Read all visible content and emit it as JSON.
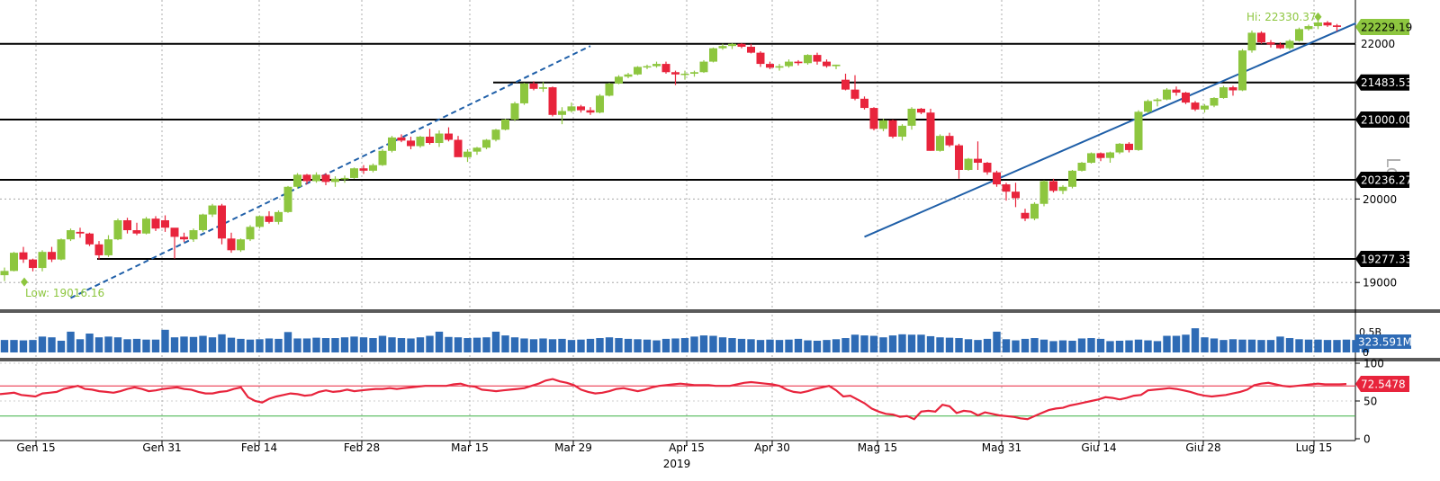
{
  "chart_data": [
    {
      "type": "candlestick",
      "title": "",
      "scale": "log",
      "scale_label": "Log",
      "ylim": [
        18700,
        22600
      ],
      "ticks": [
        19000,
        20000,
        22000
      ],
      "ohlc": [
        [
          19085,
          19175,
          19016.16,
          19135
        ],
        [
          19135,
          19360,
          19130,
          19350
        ],
        [
          19355,
          19420,
          19230,
          19270
        ],
        [
          19270,
          19280,
          19130,
          19170
        ],
        [
          19170,
          19380,
          19130,
          19360
        ],
        [
          19360,
          19420,
          19240,
          19270
        ],
        [
          19270,
          19520,
          19260,
          19510
        ],
        [
          19510,
          19640,
          19490,
          19620
        ],
        [
          19600,
          19650,
          19530,
          19580
        ],
        [
          19580,
          19590,
          19430,
          19450
        ],
        [
          19450,
          19490,
          19270,
          19320
        ],
        [
          19320,
          19560,
          19300,
          19510
        ],
        [
          19510,
          19760,
          19500,
          19740
        ],
        [
          19740,
          19770,
          19580,
          19620
        ],
        [
          19620,
          19710,
          19560,
          19580
        ],
        [
          19580,
          19780,
          19570,
          19760
        ],
        [
          19760,
          19790,
          19610,
          19640
        ],
        [
          19740,
          19800,
          19600,
          19650
        ],
        [
          19650,
          19640,
          19280,
          19540
        ],
        [
          19540,
          19590,
          19480,
          19510
        ],
        [
          19510,
          19640,
          19480,
          19620
        ],
        [
          19620,
          19820,
          19600,
          19810
        ],
        [
          19810,
          19940,
          19780,
          19920
        ],
        [
          19920,
          19940,
          19450,
          19520
        ],
        [
          19520,
          19590,
          19350,
          19380
        ],
        [
          19380,
          19520,
          19360,
          19510
        ],
        [
          19510,
          19680,
          19490,
          19660
        ],
        [
          19660,
          19800,
          19640,
          19790
        ],
        [
          19790,
          19850,
          19700,
          19720
        ],
        [
          19720,
          19860,
          19690,
          19840
        ],
        [
          19840,
          20160,
          19830,
          20150
        ],
        [
          20150,
          20320,
          20130,
          20300
        ],
        [
          20300,
          20310,
          20180,
          20220
        ],
        [
          20220,
          20330,
          20200,
          20300
        ],
        [
          20300,
          20320,
          20170,
          20210
        ],
        [
          20210,
          20280,
          20150,
          20250
        ],
        [
          20250,
          20290,
          20200,
          20260
        ],
        [
          20260,
          20390,
          20250,
          20380
        ],
        [
          20380,
          20420,
          20310,
          20350
        ],
        [
          20350,
          20440,
          20330,
          20420
        ],
        [
          20420,
          20620,
          20410,
          20600
        ],
        [
          20600,
          20790,
          20580,
          20770
        ],
        [
          20770,
          20810,
          20710,
          20730
        ],
        [
          20730,
          20780,
          20620,
          20660
        ],
        [
          20660,
          20790,
          20640,
          20780
        ],
        [
          20780,
          20880,
          20680,
          20700
        ],
        [
          20700,
          20860,
          20650,
          20820
        ],
        [
          20820,
          20900,
          20720,
          20740
        ],
        [
          20740,
          20790,
          20530,
          20520
        ],
        [
          20520,
          20620,
          20460,
          20590
        ],
        [
          20590,
          20650,
          20550,
          20640
        ],
        [
          20640,
          20750,
          20620,
          20740
        ],
        [
          20740,
          20880,
          20720,
          20870
        ],
        [
          20870,
          21010,
          20860,
          21000
        ],
        [
          21000,
          21230,
          20980,
          21210
        ],
        [
          21210,
          21480,
          21190,
          21470
        ],
        [
          21470,
          21500,
          21380,
          21400
        ],
        [
          21400,
          21490,
          21360,
          21420
        ],
        [
          21420,
          21430,
          21040,
          21060
        ],
        [
          21060,
          21160,
          20940,
          21110
        ],
        [
          21110,
          21220,
          21090,
          21170
        ],
        [
          21170,
          21190,
          21090,
          21120
        ],
        [
          21120,
          21160,
          21060,
          21090
        ],
        [
          21090,
          21330,
          21080,
          21310
        ],
        [
          21310,
          21480,
          21300,
          21470
        ],
        [
          21470,
          21580,
          21460,
          21560
        ],
        [
          21560,
          21610,
          21540,
          21590
        ],
        [
          21590,
          21700,
          21580,
          21690
        ],
        [
          21690,
          21720,
          21660,
          21700
        ],
        [
          21700,
          21760,
          21680,
          21730
        ],
        [
          21730,
          21760,
          21600,
          21620
        ],
        [
          21620,
          21640,
          21450,
          21590
        ],
        [
          21590,
          21640,
          21520,
          21600
        ],
        [
          21600,
          21640,
          21560,
          21620
        ],
        [
          21620,
          21780,
          21610,
          21760
        ],
        [
          21760,
          21950,
          21750,
          21940
        ],
        [
          21940,
          22000,
          21920,
          21970
        ],
        [
          21970,
          22010,
          21930,
          22000
        ],
        [
          22000,
          22010,
          21940,
          21960
        ],
        [
          21960,
          22000,
          21870,
          21880
        ],
        [
          21880,
          21900,
          21690,
          21730
        ],
        [
          21730,
          21760,
          21660,
          21680
        ],
        [
          21680,
          21730,
          21640,
          21700
        ],
        [
          21700,
          21790,
          21680,
          21760
        ],
        [
          21760,
          21780,
          21710,
          21740
        ],
        [
          21740,
          21860,
          21720,
          21850
        ],
        [
          21850,
          21880,
          21720,
          21760
        ],
        [
          21760,
          21790,
          21680,
          21700
        ],
        [
          21700,
          21720,
          21660,
          21720
        ],
        [
          21520,
          21600,
          21380,
          21390
        ],
        [
          21390,
          21580,
          21250,
          21270
        ],
        [
          21270,
          21300,
          21130,
          21150
        ],
        [
          21150,
          21160,
          20860,
          20880
        ],
        [
          20880,
          21010,
          20850,
          20990
        ],
        [
          20990,
          21000,
          20760,
          20780
        ],
        [
          20780,
          20940,
          20730,
          20920
        ],
        [
          20920,
          21160,
          20870,
          21140
        ],
        [
          21140,
          21150,
          21070,
          21090
        ],
        [
          21090,
          21140,
          20600,
          20600
        ],
        [
          20600,
          20810,
          20590,
          20790
        ],
        [
          20790,
          20830,
          20650,
          20670
        ],
        [
          20670,
          20690,
          20250,
          20360
        ],
        [
          20360,
          20510,
          20350,
          20500
        ],
        [
          20500,
          20720,
          20360,
          20450
        ],
        [
          20450,
          20460,
          20300,
          20330
        ],
        [
          20330,
          20350,
          20150,
          20180
        ],
        [
          20180,
          20200,
          19980,
          20090
        ],
        [
          20090,
          20200,
          19900,
          20010
        ],
        [
          19830,
          19880,
          19730,
          19760
        ],
        [
          19760,
          19960,
          19740,
          19940
        ],
        [
          19940,
          20230,
          19910,
          20220
        ],
        [
          20220,
          20250,
          20080,
          20100
        ],
        [
          20100,
          20170,
          20060,
          20150
        ],
        [
          20150,
          20360,
          20130,
          20350
        ],
        [
          20350,
          20460,
          20340,
          20450
        ],
        [
          20450,
          20580,
          20440,
          20570
        ],
        [
          20570,
          20580,
          20470,
          20510
        ],
        [
          20510,
          20590,
          20450,
          20580
        ],
        [
          20580,
          20700,
          20560,
          20690
        ],
        [
          20690,
          20710,
          20580,
          20610
        ],
        [
          20610,
          21120,
          20600,
          21100
        ],
        [
          21100,
          21260,
          21080,
          21240
        ],
        [
          21240,
          21280,
          21170,
          21260
        ],
        [
          21260,
          21410,
          21250,
          21390
        ],
        [
          21390,
          21430,
          21310,
          21350
        ],
        [
          21350,
          21360,
          21200,
          21220
        ],
        [
          21220,
          21240,
          21110,
          21130
        ],
        [
          21130,
          21200,
          21090,
          21180
        ],
        [
          21180,
          21290,
          21160,
          21280
        ],
        [
          21280,
          21440,
          21270,
          21420
        ],
        [
          21420,
          21440,
          21310,
          21380
        ],
        [
          21380,
          21930,
          21370,
          21910
        ],
        [
          21910,
          22180,
          21880,
          22150
        ],
        [
          22150,
          22170,
          22000,
          22020
        ],
        [
          22020,
          22050,
          21950,
          21990
        ],
        [
          21990,
          22020,
          21930,
          21940
        ],
        [
          21940,
          22060,
          21920,
          22040
        ],
        [
          22040,
          22220,
          22030,
          22200
        ],
        [
          22200,
          22260,
          22180,
          22240
        ],
        [
          22240,
          22330.37,
          22200,
          22290
        ],
        [
          22290,
          22310,
          22230,
          22250
        ],
        [
          22250,
          22270,
          22170,
          22229.19
        ]
      ],
      "x_labels": [
        "Gen 15",
        "Gen 31",
        "Feb 14",
        "Feb 28",
        "Mar 15",
        "Mar 29",
        "Apr 15",
        "Apr 30",
        "Mag 15",
        "Mag 31",
        "Giu 14",
        "Giu 28",
        "Lug 15"
      ],
      "x_year": "2019",
      "hi_label": "Hi: 22330.37",
      "low_label": "Low: 19016.16",
      "last_price_label": "22229.19",
      "last_price": 22229.19,
      "price_tick_labels": [
        "22000",
        "20000",
        "19000"
      ],
      "level_lines": [
        {
          "value": 22000,
          "label": "22000"
        },
        {
          "value": 21483.53,
          "label": "21483.53"
        },
        {
          "value": 21000,
          "label": "21000.00"
        },
        {
          "value": 20236.27,
          "label": "20236.27"
        },
        {
          "value": 19277.33,
          "label": "19277.33"
        }
      ],
      "trendlines": [
        {
          "style": "dashed",
          "points": [
            [
              7,
              18820
            ],
            [
              62,
              21970
            ]
          ]
        },
        {
          "style": "solid",
          "points": [
            [
              91,
              19540
            ],
            [
              143,
              22280
            ]
          ]
        }
      ],
      "colors": {
        "up": "#8dc63f",
        "down": "#e8243c",
        "trendline": "#1f5fa8",
        "grid": "#9a9a9a",
        "level": "#000000",
        "hi_low": "#8dc63f"
      }
    },
    {
      "type": "bar",
      "title": "",
      "value_unit": "M",
      "ylim": [
        0,
        1000
      ],
      "values": [
        330,
        330,
        320,
        330,
        420,
        400,
        310,
        550,
        350,
        500,
        400,
        420,
        400,
        350,
        360,
        340,
        340,
        600,
        400,
        420,
        410,
        440,
        400,
        480,
        390,
        360,
        340,
        350,
        370,
        360,
        540,
        370,
        370,
        390,
        380,
        380,
        400,
        420,
        400,
        380,
        440,
        400,
        380,
        370,
        400,
        440,
        550,
        410,
        400,
        380,
        390,
        400,
        550,
        450,
        400,
        370,
        350,
        370,
        350,
        360,
        330,
        340,
        360,
        380,
        400,
        380,
        360,
        350,
        340,
        320,
        360,
        370,
        380,
        420,
        450,
        440,
        400,
        380,
        360,
        350,
        330,
        340,
        330,
        340,
        360,
        320,
        310,
        330,
        350,
        380,
        470,
        450,
        440,
        400,
        450,
        480,
        470,
        470,
        430,
        400,
        390,
        380,
        350,
        330,
        360,
        550,
        350,
        320,
        360,
        380,
        340,
        300,
        320,
        310,
        370,
        380,
        360,
        300,
        310,
        320,
        340,
        320,
        300,
        440,
        440,
        470,
        640,
        400,
        370,
        330,
        350,
        340,
        340,
        330,
        330,
        420,
        380,
        350,
        340,
        340,
        330,
        330,
        340,
        330,
        323.591
      ],
      "tick_labels": [
        "0.5B",
        "0"
      ],
      "last_value_label": "323.591M",
      "colors": {
        "bar": "#2e6bb5"
      }
    },
    {
      "type": "line",
      "title": "",
      "ylim": [
        0,
        100
      ],
      "ticks": [
        0,
        50,
        100
      ],
      "tick_labels": [
        "100",
        "50",
        "0"
      ],
      "reference_lines": [
        70,
        30
      ],
      "last_value_label": "72.5478",
      "values": [
        59,
        60,
        61,
        58,
        57,
        56,
        60,
        61,
        62,
        66,
        68,
        70,
        66,
        65,
        63,
        62,
        61,
        63,
        66,
        68,
        66,
        63,
        64,
        66,
        67,
        68,
        66,
        65,
        62,
        60,
        60,
        62,
        63,
        66,
        68,
        55,
        50,
        48,
        53,
        56,
        58,
        60,
        59,
        57,
        58,
        62,
        64,
        62,
        63,
        65,
        63,
        64,
        65,
        66,
        66,
        67,
        66,
        67,
        68,
        69,
        70,
        70,
        70,
        70,
        72,
        73,
        70,
        69,
        65,
        64,
        63,
        64,
        65,
        66,
        67,
        70,
        73,
        77,
        79,
        76,
        74,
        71,
        65,
        62,
        60,
        61,
        63,
        66,
        67,
        65,
        63,
        65,
        68,
        70,
        71,
        72,
        73,
        72,
        71,
        71,
        71,
        70,
        70,
        70,
        72,
        74,
        75,
        74,
        73,
        72,
        70,
        65,
        62,
        61,
        63,
        66,
        68,
        70,
        64,
        56,
        57,
        52,
        47,
        40,
        36,
        33,
        32,
        29,
        30,
        26,
        36,
        37,
        36,
        45,
        43,
        34,
        37,
        36,
        31,
        35,
        33,
        31,
        30,
        29,
        27,
        26,
        30,
        34,
        38,
        40,
        41,
        44,
        46,
        48,
        50,
        52,
        55,
        54,
        52,
        54,
        57,
        58,
        64,
        65,
        66,
        67,
        66,
        64,
        62,
        59,
        57,
        56,
        57,
        58,
        60,
        62,
        65,
        71,
        73,
        74,
        72,
        70,
        69,
        70,
        71,
        72,
        73,
        72,
        72,
        72,
        72.5478
      ],
      "colors": {
        "line": "#e8243c",
        "upper": "#e8243c",
        "lower": "#3cb043"
      }
    }
  ],
  "axis_label": "Log"
}
